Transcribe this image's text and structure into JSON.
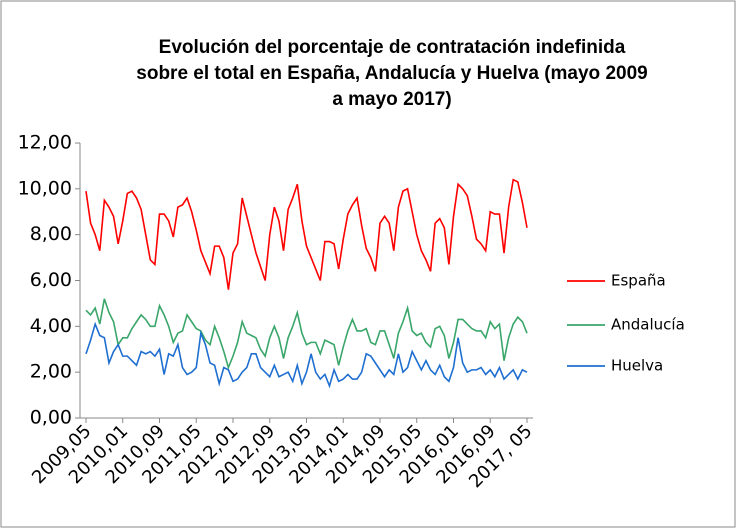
{
  "chart_data": {
    "type": "line",
    "title": [
      "Evolución del porcentaje de contratación indefinida",
      "sobre el total en España, Andalucía y Huelva (mayo 2009",
      "a mayo 2017)"
    ],
    "categories": [
      "2009,05",
      null,
      null,
      null,
      null,
      null,
      null,
      null,
      "2010,01",
      null,
      null,
      null,
      null,
      null,
      null,
      null,
      "2010,09",
      null,
      null,
      null,
      null,
      null,
      null,
      null,
      "2011,05",
      null,
      null,
      null,
      null,
      null,
      null,
      null,
      "2012,01",
      null,
      null,
      null,
      null,
      null,
      null,
      null,
      "2012,09",
      null,
      null,
      null,
      null,
      null,
      null,
      null,
      "2013,05",
      null,
      null,
      null,
      null,
      null,
      null,
      null,
      "2014,01",
      null,
      null,
      null,
      null,
      null,
      null,
      null,
      "2014,09",
      null,
      null,
      null,
      null,
      null,
      null,
      null,
      "2015,05",
      null,
      null,
      null,
      null,
      null,
      null,
      null,
      "2016,01",
      null,
      null,
      null,
      null,
      null,
      null,
      null,
      "2016,09",
      null,
      null,
      null,
      null,
      null,
      null,
      null,
      "2017, 05"
    ],
    "series": [
      {
        "name": "España",
        "color": "#ff0000",
        "values": [
          9.9,
          8.5,
          8.0,
          7.3,
          9.5,
          9.2,
          8.8,
          7.6,
          8.6,
          9.8,
          9.9,
          9.6,
          9.1,
          8.0,
          6.9,
          6.7,
          8.9,
          8.9,
          8.6,
          7.9,
          9.2,
          9.3,
          9.6,
          9.0,
          8.2,
          7.3,
          6.8,
          6.3,
          7.5,
          7.5,
          7.0,
          5.6,
          7.2,
          7.6,
          9.6,
          8.8,
          8.0,
          7.2,
          6.6,
          6.0,
          8.0,
          9.2,
          8.6,
          7.3,
          9.1,
          9.6,
          10.2,
          8.6,
          7.5,
          7.0,
          6.5,
          6.0,
          7.7,
          7.7,
          7.6,
          6.5,
          7.8,
          8.9,
          9.3,
          9.6,
          8.4,
          7.4,
          7.0,
          6.4,
          8.5,
          8.8,
          8.5,
          7.3,
          9.2,
          9.9,
          10.0,
          9.0,
          8.0,
          7.3,
          6.9,
          6.4,
          8.5,
          8.7,
          8.3,
          6.7,
          8.8,
          10.2,
          10.0,
          9.7,
          8.8,
          7.8,
          7.6,
          7.3,
          9.0,
          8.9,
          8.9,
          7.2,
          9.2,
          10.4,
          10.3,
          9.4,
          8.3
        ]
      },
      {
        "name": "Andalucía",
        "color": "#3aa66a",
        "values": [
          4.7,
          4.5,
          4.8,
          4.1,
          5.2,
          4.6,
          4.2,
          3.2,
          3.5,
          3.5,
          3.9,
          4.2,
          4.5,
          4.3,
          4.0,
          4.0,
          4.9,
          4.5,
          4.0,
          3.3,
          3.7,
          3.8,
          4.5,
          4.2,
          3.9,
          3.8,
          3.4,
          3.2,
          4.0,
          3.5,
          2.9,
          2.2,
          2.7,
          3.3,
          4.2,
          3.7,
          3.6,
          3.5,
          3.0,
          2.7,
          3.5,
          4.0,
          3.5,
          2.6,
          3.5,
          4.0,
          4.6,
          3.7,
          3.2,
          3.3,
          3.3,
          2.8,
          3.4,
          3.3,
          3.2,
          2.3,
          3.1,
          3.8,
          4.3,
          3.8,
          3.8,
          3.9,
          3.3,
          3.2,
          3.8,
          3.8,
          3.2,
          2.6,
          3.7,
          4.2,
          4.8,
          3.8,
          3.6,
          3.7,
          3.3,
          3.1,
          3.9,
          4.0,
          3.6,
          2.6,
          3.3,
          4.3,
          4.3,
          4.1,
          3.9,
          3.8,
          3.8,
          3.5,
          4.2,
          3.9,
          4.1,
          2.5,
          3.5,
          4.1,
          4.4,
          4.2,
          3.7
        ]
      },
      {
        "name": "Huelva",
        "color": "#1f6fd1",
        "values": [
          2.8,
          3.4,
          4.1,
          3.6,
          3.5,
          2.4,
          2.9,
          3.2,
          2.7,
          2.7,
          2.5,
          2.3,
          2.9,
          2.8,
          2.9,
          2.7,
          3.0,
          1.9,
          2.8,
          2.7,
          3.2,
          2.2,
          1.9,
          2.0,
          2.2,
          3.7,
          3.2,
          2.4,
          2.3,
          1.5,
          2.2,
          2.1,
          1.6,
          1.7,
          2.0,
          2.2,
          2.8,
          2.8,
          2.2,
          2.0,
          1.8,
          2.3,
          1.8,
          1.9,
          2.0,
          1.6,
          2.3,
          1.5,
          2.0,
          2.8,
          2.0,
          1.7,
          1.9,
          1.4,
          2.1,
          1.6,
          1.7,
          1.9,
          1.7,
          1.7,
          2.0,
          2.8,
          2.7,
          2.4,
          2.1,
          1.8,
          2.1,
          1.9,
          2.8,
          2.0,
          2.2,
          2.9,
          2.5,
          2.1,
          2.5,
          2.1,
          1.9,
          2.3,
          1.8,
          1.6,
          2.2,
          3.5,
          2.4,
          2.0,
          2.1,
          2.1,
          2.2,
          1.9,
          2.1,
          1.8,
          2.2,
          1.7,
          1.9,
          2.1,
          1.7,
          2.1,
          2.0
        ]
      }
    ],
    "ylim": [
      0,
      12
    ],
    "yticks": [
      {
        "value": 0,
        "label": "0,00"
      },
      {
        "value": 2,
        "label": "2,00"
      },
      {
        "value": 4,
        "label": "4,00"
      },
      {
        "value": 6,
        "label": "6,00"
      },
      {
        "value": 8,
        "label": "8,00"
      },
      {
        "value": 10,
        "label": "10,00"
      },
      {
        "value": 12,
        "label": "12,00"
      }
    ],
    "grid": false,
    "legend": "right"
  }
}
